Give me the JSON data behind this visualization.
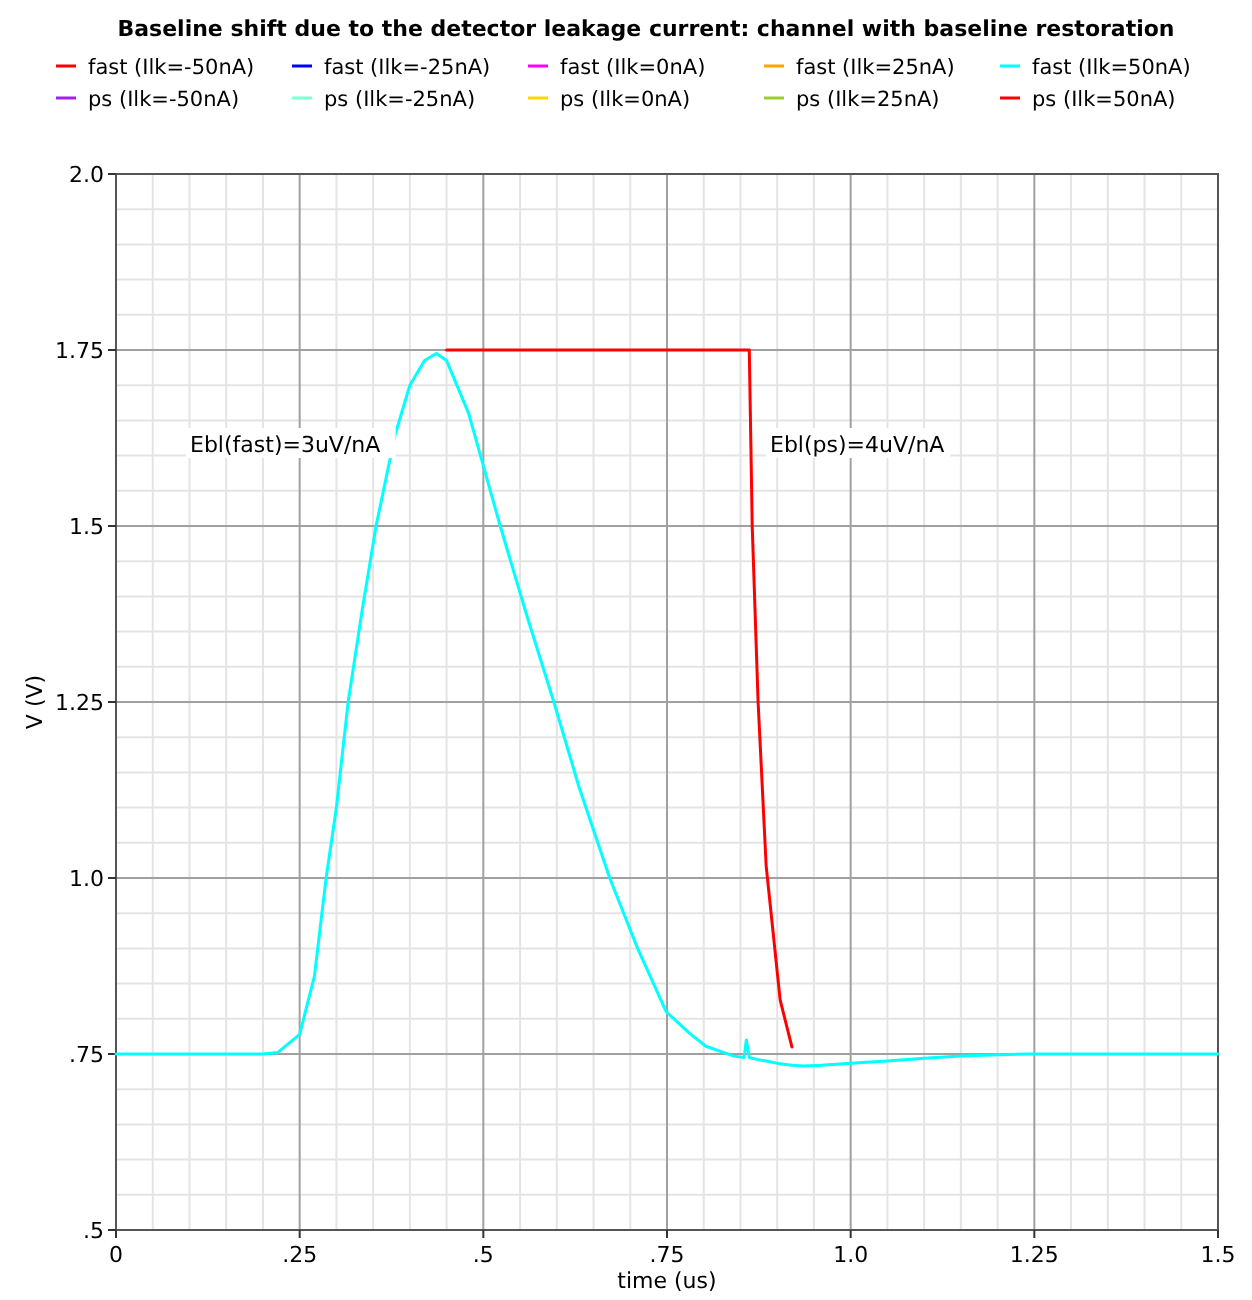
{
  "chart_data": {
    "type": "line",
    "title": "Baseline shift due to the detector leakage current:  channel with baseline restoration",
    "xlabel": "time (us)",
    "ylabel": "V (V)",
    "x": [
      0,
      0.2,
      0.22,
      0.25,
      0.27,
      0.286,
      0.3,
      0.316,
      0.335,
      0.354,
      0.38,
      0.4,
      0.42,
      0.436,
      0.45,
      0.48,
      0.523,
      0.56,
      0.596,
      0.63,
      0.672,
      0.71,
      0.749,
      0.78,
      0.803,
      0.841,
      0.855,
      0.858,
      0.862,
      0.866,
      0.874,
      0.885,
      0.904,
      0.92,
      0.936,
      0.96,
      1.0,
      1.05,
      1.1,
      1.15,
      1.2,
      1.24,
      1.3,
      1.4,
      1.5
    ],
    "series": [
      {
        "name": "fast (Ilk=-50nA)",
        "color": "#ff0000",
        "values": [
          null,
          null,
          null,
          null,
          null,
          null,
          null,
          null,
          null,
          null,
          null,
          null,
          null,
          null,
          null,
          null,
          null,
          null,
          null,
          null,
          null,
          null,
          null,
          null,
          null,
          null,
          null,
          null,
          null,
          null,
          null,
          null,
          null,
          null,
          null,
          null,
          null,
          null,
          null,
          null,
          null,
          null,
          null,
          null,
          null
        ]
      },
      {
        "name": "fast (Ilk=-25nA)",
        "color": "#0000ff",
        "values": [
          null,
          null,
          null,
          null,
          null,
          null,
          null,
          null,
          null,
          null,
          null,
          null,
          null,
          null,
          null,
          null,
          null,
          null,
          null,
          null,
          null,
          null,
          null,
          null,
          null,
          null,
          null,
          null,
          null,
          null,
          null,
          null,
          null,
          null,
          null,
          null,
          null,
          null,
          null,
          null,
          null,
          null,
          null,
          null,
          null
        ]
      },
      {
        "name": "fast (Ilk=0nA)",
        "color": "#ff00ff",
        "values": [
          null,
          null,
          null,
          null,
          null,
          null,
          null,
          null,
          null,
          null,
          null,
          null,
          null,
          null,
          null,
          null,
          null,
          null,
          null,
          null,
          null,
          null,
          null,
          null,
          null,
          null,
          null,
          null,
          null,
          null,
          null,
          null,
          null,
          null,
          null,
          null,
          null,
          null,
          null,
          null,
          null,
          null,
          null,
          null,
          null
        ]
      },
      {
        "name": "fast (Ilk=25nA)",
        "color": "#ffa500",
        "values": [
          null,
          null,
          null,
          null,
          null,
          null,
          null,
          null,
          null,
          null,
          null,
          null,
          null,
          null,
          null,
          null,
          null,
          null,
          null,
          null,
          null,
          null,
          null,
          null,
          null,
          null,
          null,
          null,
          null,
          null,
          null,
          null,
          null,
          null,
          null,
          null,
          null,
          null,
          null,
          null,
          null,
          null,
          null,
          null,
          null
        ]
      },
      {
        "name": "fast (Ilk=50nA)",
        "color": "#00ffff",
        "values": [
          0.75,
          0.75,
          0.752,
          0.778,
          0.86,
          1.0,
          1.1,
          1.25,
          1.38,
          1.5,
          1.63,
          1.7,
          1.735,
          1.745,
          1.735,
          1.66,
          1.5,
          1.37,
          1.25,
          1.13,
          1.0,
          0.9,
          0.81,
          0.78,
          0.761,
          0.747,
          0.745,
          0.77,
          0.745,
          0.744,
          0.742,
          0.74,
          0.736,
          0.734,
          0.733,
          0.734,
          0.737,
          0.74,
          0.744,
          0.747,
          0.749,
          0.75,
          0.75,
          0.75,
          0.75
        ]
      },
      {
        "name": "ps (Ilk=-50nA)",
        "color": "#a020f0",
        "values": [
          null,
          null,
          null,
          null,
          null,
          null,
          null,
          null,
          null,
          null,
          null,
          null,
          null,
          null,
          null,
          null,
          null,
          null,
          null,
          null,
          null,
          null,
          null,
          null,
          null,
          null,
          null,
          null,
          null,
          null,
          null,
          null,
          null,
          null,
          null,
          null,
          null,
          null,
          null,
          null,
          null,
          null,
          null,
          null,
          null
        ]
      },
      {
        "name": "ps (Ilk=-25nA)",
        "color": "#7fffd4",
        "values": [
          null,
          null,
          null,
          null,
          null,
          null,
          null,
          null,
          null,
          null,
          null,
          null,
          null,
          null,
          null,
          null,
          null,
          null,
          null,
          null,
          null,
          null,
          null,
          null,
          null,
          null,
          null,
          null,
          null,
          null,
          null,
          null,
          null,
          null,
          null,
          null,
          null,
          null,
          null,
          null,
          null,
          null,
          null,
          null,
          null
        ]
      },
      {
        "name": "ps (Ilk=0nA)",
        "color": "#ffd700",
        "values": [
          null,
          null,
          null,
          null,
          null,
          null,
          null,
          null,
          null,
          null,
          null,
          null,
          null,
          null,
          null,
          null,
          null,
          null,
          null,
          null,
          null,
          null,
          null,
          null,
          null,
          null,
          null,
          null,
          null,
          null,
          null,
          null,
          null,
          null,
          null,
          null,
          null,
          null,
          null,
          null,
          null,
          null,
          null,
          null,
          null
        ]
      },
      {
        "name": "ps (Ilk=25nA)",
        "color": "#9acd32",
        "values": [
          null,
          null,
          null,
          null,
          null,
          null,
          null,
          null,
          null,
          null,
          null,
          null,
          null,
          null,
          null,
          null,
          null,
          null,
          null,
          null,
          null,
          null,
          null,
          null,
          null,
          null,
          null,
          null,
          null,
          null,
          null,
          null,
          null,
          null,
          null,
          null,
          null,
          null,
          null,
          null,
          null,
          null,
          null,
          null,
          null
        ]
      },
      {
        "name": "ps (Ilk=50nA)",
        "color": "#ff0000",
        "values": [
          null,
          null,
          null,
          null,
          null,
          null,
          null,
          null,
          null,
          null,
          null,
          null,
          null,
          null,
          1.75,
          1.75,
          1.75,
          1.75,
          1.75,
          1.75,
          1.75,
          1.75,
          1.75,
          1.75,
          1.75,
          1.75,
          1.75,
          1.75,
          1.75,
          1.5,
          1.25,
          1.017,
          0.827,
          0.76,
          null,
          null,
          null,
          null,
          null,
          null,
          null,
          null,
          null,
          null,
          null
        ]
      }
    ],
    "xlim": [
      0,
      1.5
    ],
    "xticks": [
      0,
      {
        "value": 0.25,
        "label": ".25"
      },
      {
        "value": 0.5,
        "label": ".5"
      },
      {
        "value": 0.75,
        "label": ".75"
      },
      {
        "value": 1,
        "label": "1.0"
      },
      1.25,
      1.5
    ],
    "ylim": [
      0.5,
      2
    ],
    "yticks": [
      {
        "value": 0.5,
        "label": ".5"
      },
      {
        "value": 0.75,
        "label": ".75"
      },
      {
        "value": 1,
        "label": "1.0"
      },
      1.25,
      1.5,
      1.75,
      {
        "value": 2,
        "label": "2.0"
      }
    ],
    "grid": true,
    "legend": "top",
    "marker": "none",
    "line_style": "solid",
    "annotations": [
      "Ebl(fast)=3uV/nA",
      "Ebl(ps)=4uV/nA"
    ]
  }
}
